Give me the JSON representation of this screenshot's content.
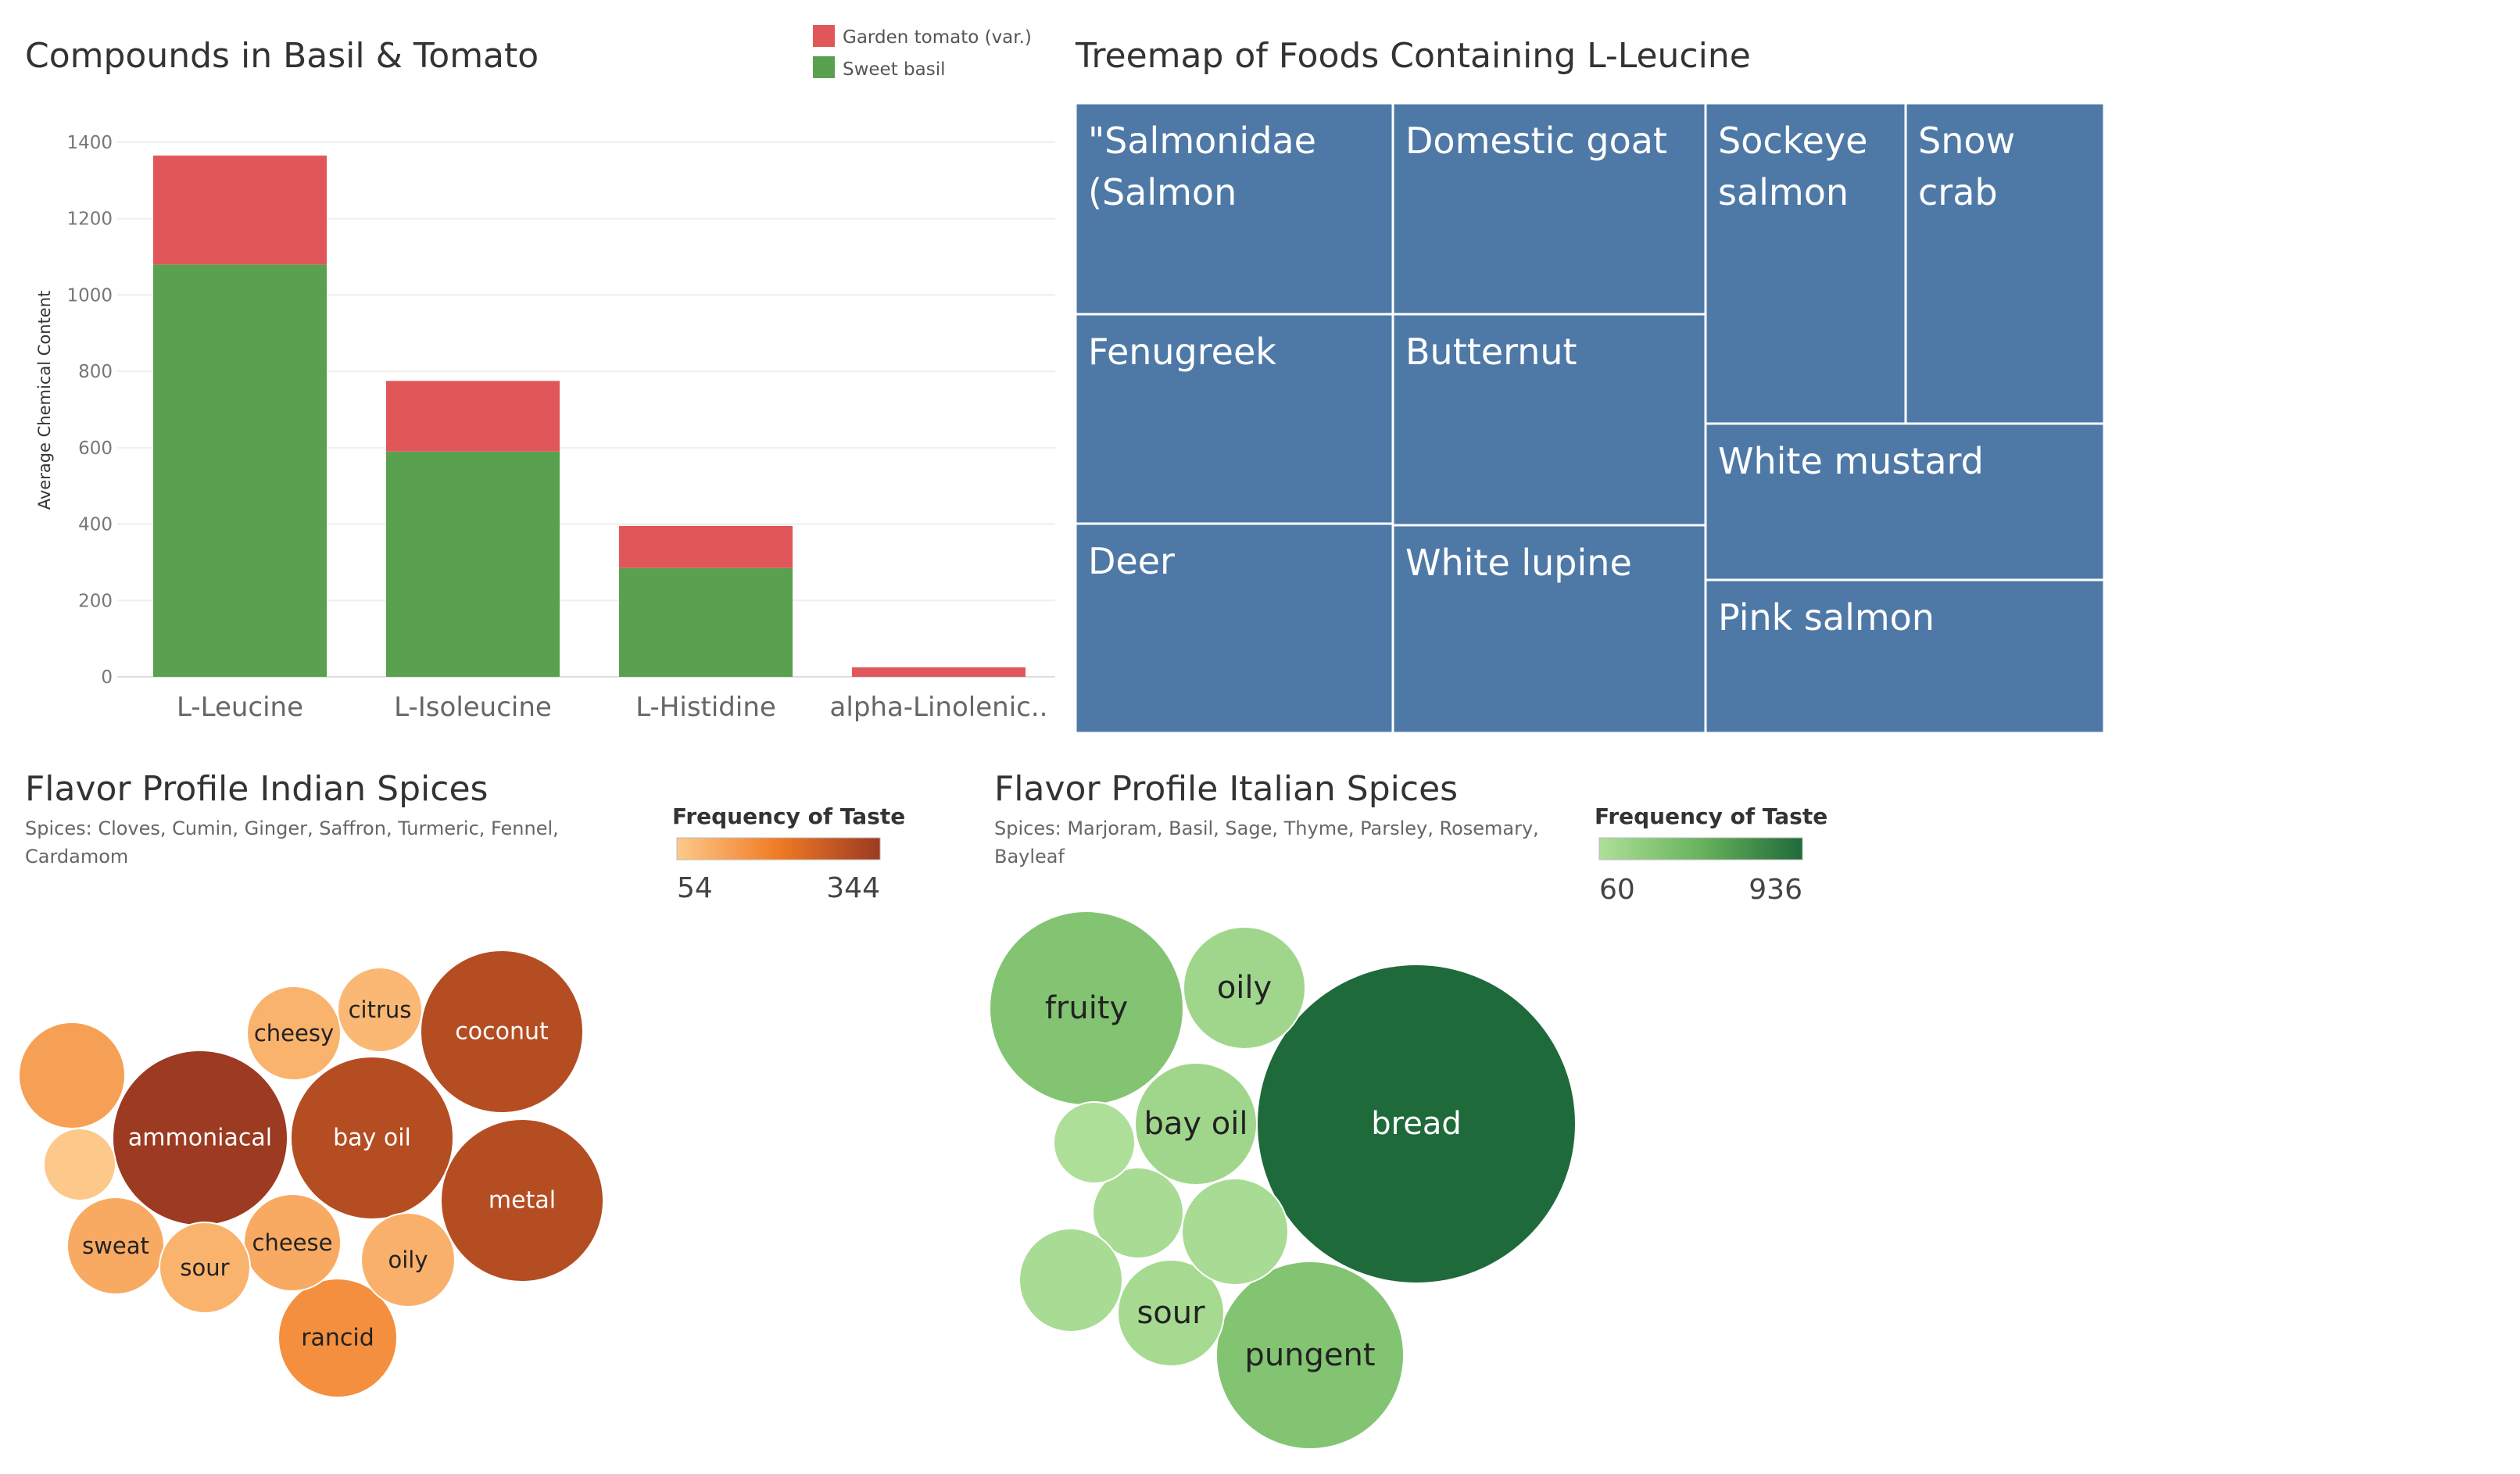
{
  "colors": {
    "tomato": "#e15759",
    "basil": "#59a14f",
    "treemap": "#4e79a7",
    "grid": "#eeeeee"
  },
  "chart_data": [
    {
      "id": "basil-tomato",
      "type": "bar",
      "stacked": true,
      "title": "Compounds in Basil & Tomato",
      "xlabel": "",
      "ylabel": "Average Chemical Content",
      "ylim": [
        0,
        1400
      ],
      "yticks": [
        0,
        200,
        400,
        600,
        800,
        1000,
        1200,
        1400
      ],
      "categories": [
        "L-Leucine",
        "L-Isoleucine",
        "L-Histidine",
        "alpha-Linolenic.."
      ],
      "legend_position": "top-right",
      "series": [
        {
          "name": "Sweet basil",
          "color": "#59a14f",
          "values": [
            1080,
            590,
            285,
            0
          ]
        },
        {
          "name": "Garden tomato (var.)",
          "color": "#e15759",
          "values": [
            285,
            185,
            110,
            25
          ]
        }
      ]
    },
    {
      "id": "leucine-treemap",
      "type": "treemap",
      "title": "Treemap of Foods Containing L-Leucine",
      "items": [
        {
          "label": [
            "\"Salmonidae",
            "(Salmon"
          ]
        },
        {
          "label": [
            "Fenugreek"
          ]
        },
        {
          "label": [
            "Deer"
          ]
        },
        {
          "label": [
            "Domestic goat"
          ]
        },
        {
          "label": [
            "Butternut"
          ]
        },
        {
          "label": [
            "White lupine"
          ]
        },
        {
          "label": [
            "Sockeye",
            "salmon"
          ]
        },
        {
          "label": [
            "Snow",
            "crab"
          ]
        },
        {
          "label": [
            "White mustard"
          ]
        },
        {
          "label": [
            "Pink salmon"
          ]
        }
      ]
    },
    {
      "id": "indian-spices",
      "type": "bubble",
      "title": "Flavor Profile Indian Spices",
      "subtitle": [
        "Spices: Cloves, Cumin, Ginger, Saffron, Turmeric, Fennel,",
        "Cardamom"
      ],
      "color_legend": {
        "title": "Frequency of Taste",
        "min": 54,
        "max": 344
      },
      "items": [
        {
          "label": "coconut",
          "value": 300
        },
        {
          "label": "ammoniacal",
          "value": 344
        },
        {
          "label": "metal",
          "value": 300
        },
        {
          "label": "bay oil",
          "value": 300
        },
        {
          "label": "rancid",
          "value": 160
        },
        {
          "label": "",
          "value": 130
        },
        {
          "label": "cheesy",
          "value": 95
        },
        {
          "label": "citrus",
          "value": 85
        },
        {
          "label": "sweat",
          "value": 110
        },
        {
          "label": "cheese",
          "value": 110
        },
        {
          "label": "sour",
          "value": 95
        },
        {
          "label": "oily",
          "value": 100
        },
        {
          "label": "",
          "value": 54
        }
      ]
    },
    {
      "id": "italian-spices",
      "type": "bubble",
      "title": "Flavor Profile Italian Spices",
      "subtitle": [
        "Spices: Marjoram, Basil, Sage, Thyme, Parsley, Rosemary,",
        "Bayleaf"
      ],
      "color_legend": {
        "title": "Frequency of Taste",
        "min": 60,
        "max": 936
      },
      "items": [
        {
          "label": "bread",
          "value": 936
        },
        {
          "label": "fruity",
          "value": 330
        },
        {
          "label": "pungent",
          "value": 330
        },
        {
          "label": "oily",
          "value": 150
        },
        {
          "label": "bay oil",
          "value": 150
        },
        {
          "label": "sour",
          "value": 110
        },
        {
          "label": "",
          "value": 100
        },
        {
          "label": "",
          "value": 100
        },
        {
          "label": "",
          "value": 100
        },
        {
          "label": "",
          "value": 60
        }
      ]
    }
  ]
}
